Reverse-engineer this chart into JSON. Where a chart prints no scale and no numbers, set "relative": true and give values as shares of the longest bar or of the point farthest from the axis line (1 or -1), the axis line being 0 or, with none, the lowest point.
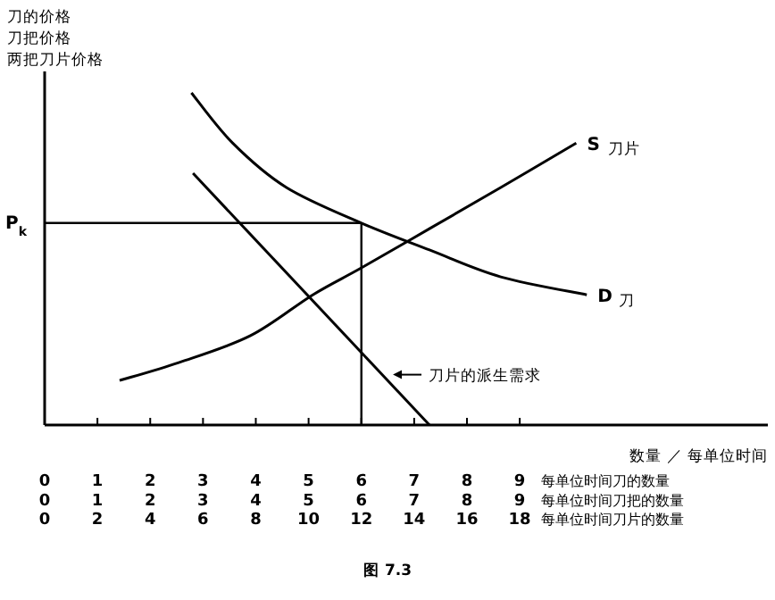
{
  "chart_data": {
    "type": "line",
    "relative": true,
    "ylabel": "刀的价格",
    "xlabel": "每单位时间刀的数量",
    "x2label": "每单位时间刀片的数量",
    "xlim": [
      0,
      13.7
    ],
    "xticks": [
      0,
      1,
      2,
      3,
      4,
      5,
      6,
      7,
      8,
      9
    ],
    "x2lim": [
      0,
      27.4
    ],
    "x2ticks": [
      0,
      2,
      4,
      6,
      8,
      10,
      12,
      14,
      16,
      18
    ],
    "series": [
      {
        "name": "刀",
        "color": "#000000",
        "x": [
          2.78,
          3.56,
          4.58,
          6.0,
          7.29,
          8.64,
          10.27
        ],
        "values": [
          1,
          0.849,
          0.715,
          0.608,
          0.527,
          0.446,
          0.392
        ]
      },
      {
        "name": "刀片",
        "color": "#000000",
        "x": [
          1.42,
          2.54,
          3.9,
          5.08,
          6.0,
          7.29,
          8.64,
          10.07
        ],
        "values": [
          0.134,
          0.188,
          0.269,
          0.392,
          0.473,
          0.591,
          0.715,
          0.849
        ]
      },
      {
        "name": "刀片的派生需求",
        "color": "#000000",
        "x": [
          2.81,
          7.29
        ],
        "values": [
          0.758,
          0
        ]
      }
    ],
    "ref_lines": [
      {
        "axis": "y",
        "value": 0.608,
        "label": "P$_{k}$",
        "color": "#000000"
      },
      {
        "axis": "x",
        "value": 6,
        "color": "#000000"
      }
    ],
    "annotations": [
      {
        "text": "D",
        "x": 10.27,
        "y": 0.392
      },
      {
        "text": "S",
        "x": 10.07,
        "y": 0.849
      },
      "刀把价格",
      "两把刀片价格",
      "数量 ／ 每单位时间",
      "图 7.3",
      "每单位时间刀把的数量",
      "0",
      "1",
      "2",
      "3",
      "4",
      "5",
      "6",
      "7",
      "8",
      "9"
    ]
  }
}
